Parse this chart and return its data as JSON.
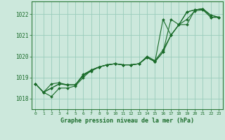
{
  "title": "Graphe pression niveau de la mer (hPa)",
  "background_color": "#cce8dc",
  "grid_color": "#99ccbb",
  "line_color": "#1a6b2a",
  "spine_color": "#2d7a3a",
  "xlim": [
    -0.5,
    23.5
  ],
  "ylim": [
    1017.5,
    1022.6
  ],
  "yticks": [
    1018,
    1019,
    1020,
    1021,
    1022
  ],
  "xtick_labels": [
    "0",
    "1",
    "2",
    "3",
    "4",
    "5",
    "6",
    "7",
    "8",
    "9",
    "10",
    "11",
    "12",
    "13",
    "14",
    "15",
    "16",
    "17",
    "18",
    "19",
    "20",
    "21",
    "22",
    "23"
  ],
  "series": [
    [
      1018.7,
      1018.3,
      1018.1,
      1018.5,
      1018.5,
      1018.6,
      1019.0,
      1019.35,
      1019.5,
      1019.6,
      1019.65,
      1019.6,
      1019.6,
      1019.65,
      1020.0,
      1019.8,
      1020.3,
      1021.0,
      1021.5,
      1022.1,
      1022.2,
      1022.25,
      1021.95,
      1021.85
    ],
    [
      1018.7,
      1018.3,
      1018.5,
      1018.7,
      1018.65,
      1018.65,
      1019.1,
      1019.3,
      1019.5,
      1019.6,
      1019.65,
      1019.6,
      1019.6,
      1019.65,
      1019.95,
      1019.75,
      1020.2,
      1021.75,
      1021.5,
      1021.5,
      1022.2,
      1022.25,
      1021.85,
      1021.85
    ],
    [
      1018.7,
      1018.3,
      1018.7,
      1018.75,
      1018.65,
      1018.65,
      1019.15,
      1019.35,
      1019.5,
      1019.6,
      1019.65,
      1019.6,
      1019.6,
      1019.65,
      1019.95,
      1019.75,
      1021.75,
      1021.0,
      1021.5,
      1021.75,
      1022.15,
      1022.2,
      1021.85,
      1021.85
    ],
    [
      1018.7,
      1018.3,
      1018.5,
      1018.7,
      1018.65,
      1018.65,
      1019.1,
      1019.35,
      1019.5,
      1019.6,
      1019.65,
      1019.6,
      1019.6,
      1019.65,
      1019.95,
      1019.75,
      1020.2,
      1021.0,
      1021.5,
      1022.1,
      1022.2,
      1022.25,
      1021.95,
      1021.85
    ]
  ]
}
